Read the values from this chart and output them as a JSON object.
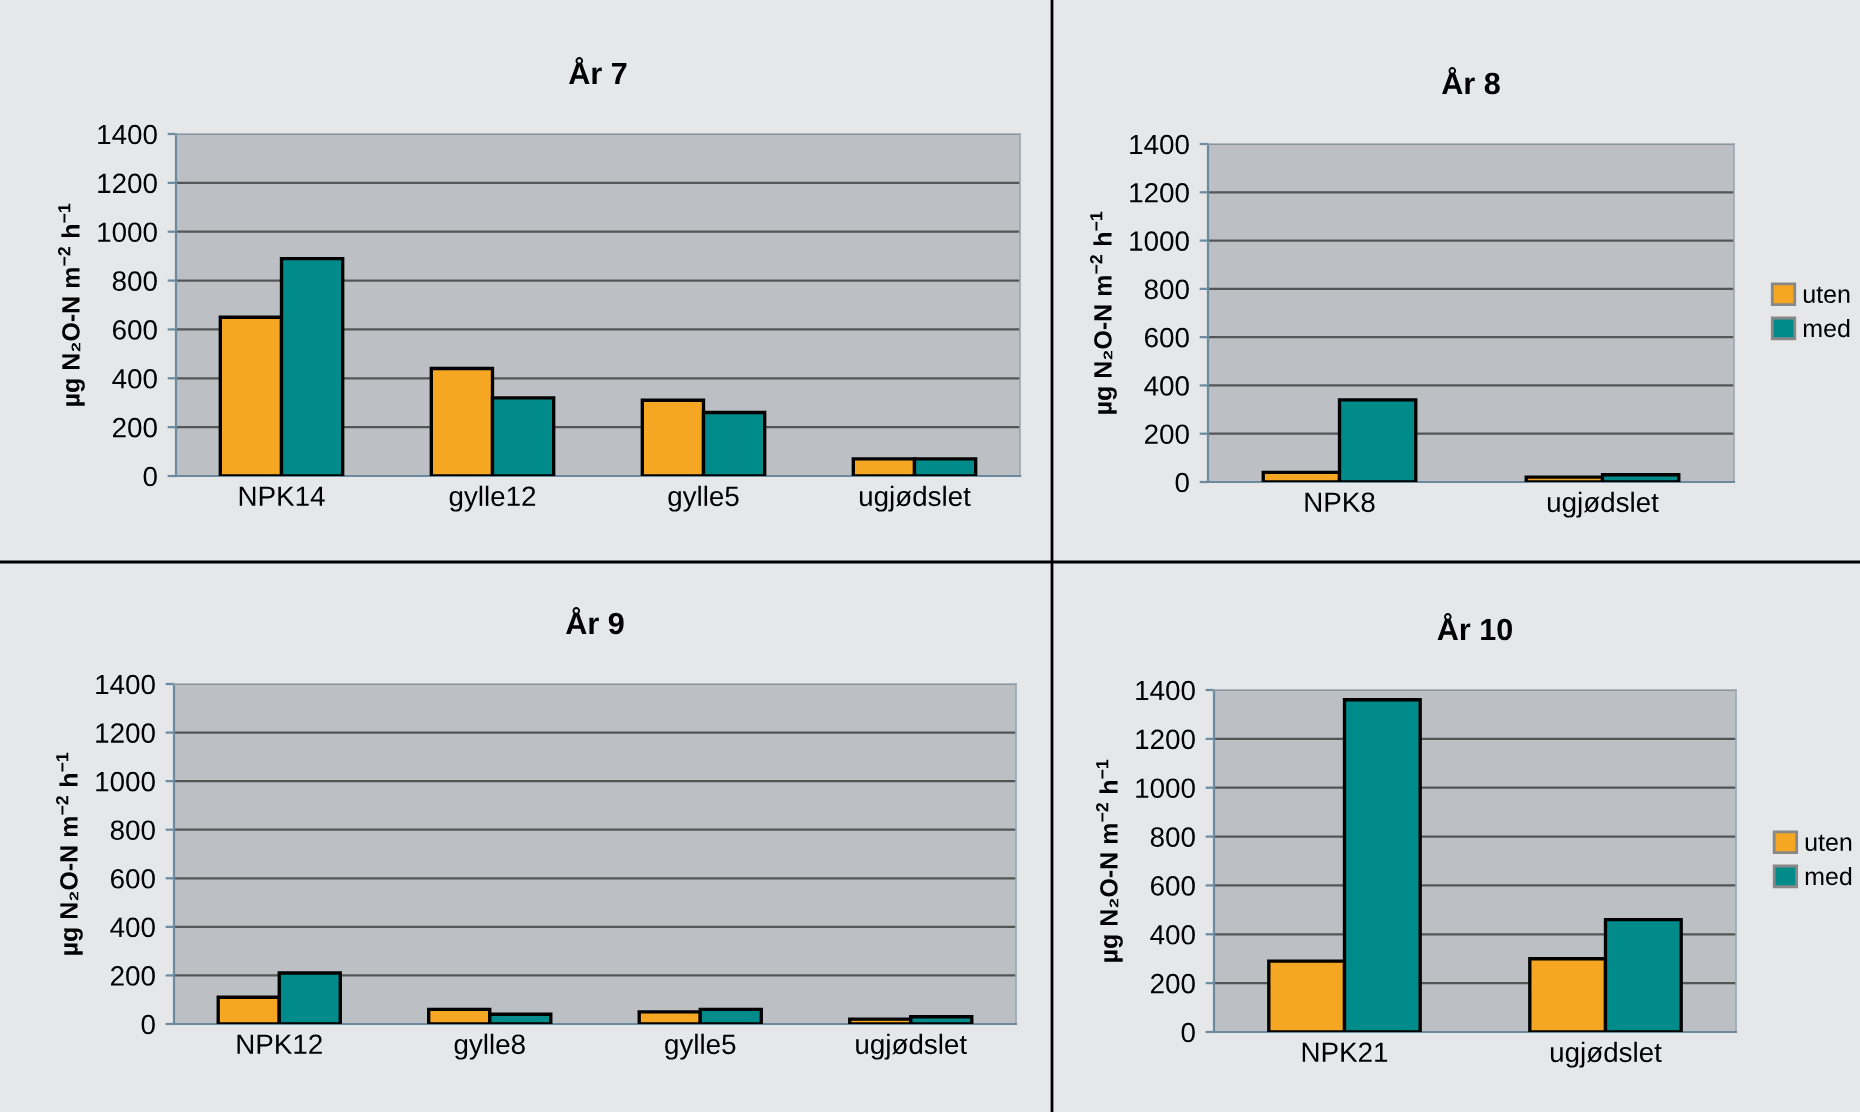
{
  "chart_data": [
    {
      "type": "bar",
      "title": "År 7",
      "ylabel": "µg N₂O-N m$^{−2}$ h$^{−1}$",
      "categories": [
        "NPK14",
        "gylle12",
        "gylle5",
        "ugjødslet"
      ],
      "series": [
        {
          "color": "#f5a623",
          "values": [
            650,
            440,
            310,
            70
          ]
        },
        {
          "color": "#008b8b",
          "values": [
            890,
            320,
            260,
            70
          ]
        }
      ],
      "ylim": [
        0,
        1400
      ],
      "yticks": [
        0,
        200,
        400,
        600,
        800,
        1000,
        1200,
        1400
      ],
      "grid": "y",
      "legend": false
    },
    {
      "type": "bar",
      "title": "År 8",
      "ylabel": "µg N₂O-N m$^{−2}$ h$^{−1}$",
      "categories": [
        "NPK8",
        "ugjødslet"
      ],
      "series": [
        {
          "name": "uten",
          "color": "#f5a623",
          "values": [
            40,
            20
          ]
        },
        {
          "name": "med",
          "color": "#008b8b",
          "values": [
            340,
            30
          ]
        }
      ],
      "ylim": [
        0,
        1400
      ],
      "yticks": [
        0,
        200,
        400,
        600,
        800,
        1000,
        1200,
        1400
      ],
      "grid": "y",
      "legend": "right"
    },
    {
      "type": "bar",
      "title": "År 9",
      "ylabel": "µg N₂O-N m$^{−2}$ h$^{−1}$",
      "categories": [
        "NPK12",
        "gylle8",
        "gylle5",
        "ugjødslet"
      ],
      "series": [
        {
          "color": "#f5a623",
          "values": [
            110,
            60,
            50,
            20
          ]
        },
        {
          "color": "#008b8b",
          "values": [
            210,
            40,
            60,
            30
          ]
        }
      ],
      "ylim": [
        0,
        1400
      ],
      "yticks": [
        0,
        200,
        400,
        600,
        800,
        1000,
        1200,
        1400
      ],
      "grid": "y",
      "legend": false
    },
    {
      "type": "bar",
      "title": "År 10",
      "ylabel": "µg N₂O-N m$^{−2}$ h$^{−1}$",
      "categories": [
        "NPK21",
        "ugjødslet"
      ],
      "series": [
        {
          "name": "uten",
          "color": "#f5a623",
          "values": [
            290,
            300
          ]
        },
        {
          "name": "med",
          "color": "#008b8b",
          "values": [
            1360,
            460
          ]
        }
      ],
      "ylim": [
        0,
        1400
      ],
      "yticks": [
        0,
        200,
        400,
        600,
        800,
        1000,
        1200,
        1400
      ],
      "grid": "y",
      "legend": "right"
    }
  ]
}
